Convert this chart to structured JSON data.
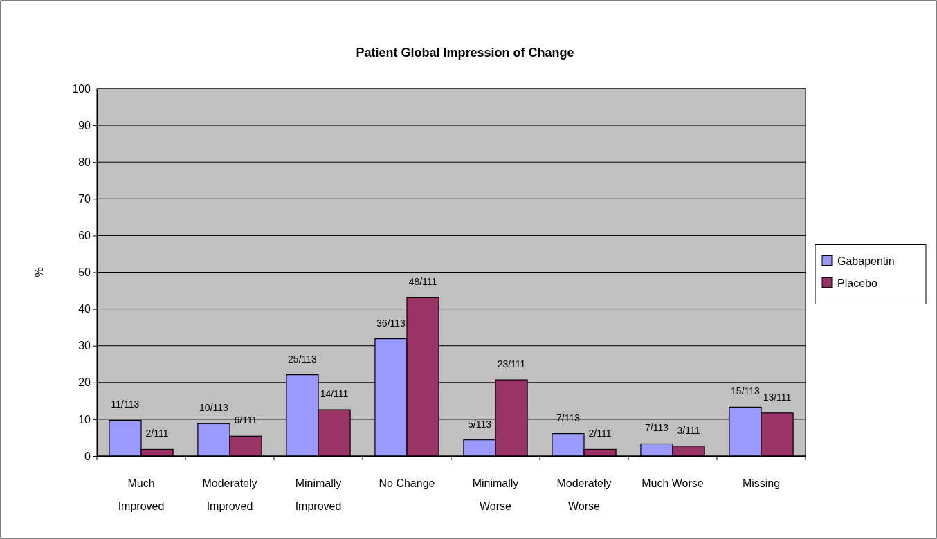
{
  "chart_data": {
    "type": "bar",
    "title": "Patient Global Impression of Change",
    "ylabel": "%",
    "categories": [
      "Much Improved",
      "Moderately Improved",
      "Minimally Improved",
      "No Change",
      "Minimally Worse",
      "Moderately Worse",
      "Much Worse",
      "Missing"
    ],
    "series": [
      {
        "name": "Gabapentin",
        "color": "#9999ff",
        "values": [
          9.7,
          8.8,
          22.1,
          31.9,
          4.4,
          6.1,
          3.3,
          13.3
        ],
        "value_labels": [
          "11/113",
          "10/113",
          "25/113",
          "36/113",
          "5/113",
          "7/113",
          "7/113",
          "15/113"
        ]
      },
      {
        "name": "Placebo",
        "color": "#993366",
        "values": [
          1.8,
          5.4,
          12.6,
          43.2,
          20.7,
          1.8,
          2.7,
          11.7
        ],
        "value_labels": [
          "2/111",
          "6/111",
          "14/111",
          "48/111",
          "23/111",
          "2/111",
          "3/111",
          "13/111"
        ]
      }
    ],
    "ylim": [
      0,
      100
    ],
    "yticks": [
      0,
      10,
      20,
      30,
      40,
      50,
      60,
      70,
      80,
      90,
      100
    ],
    "grid": "y",
    "legend": "right"
  }
}
